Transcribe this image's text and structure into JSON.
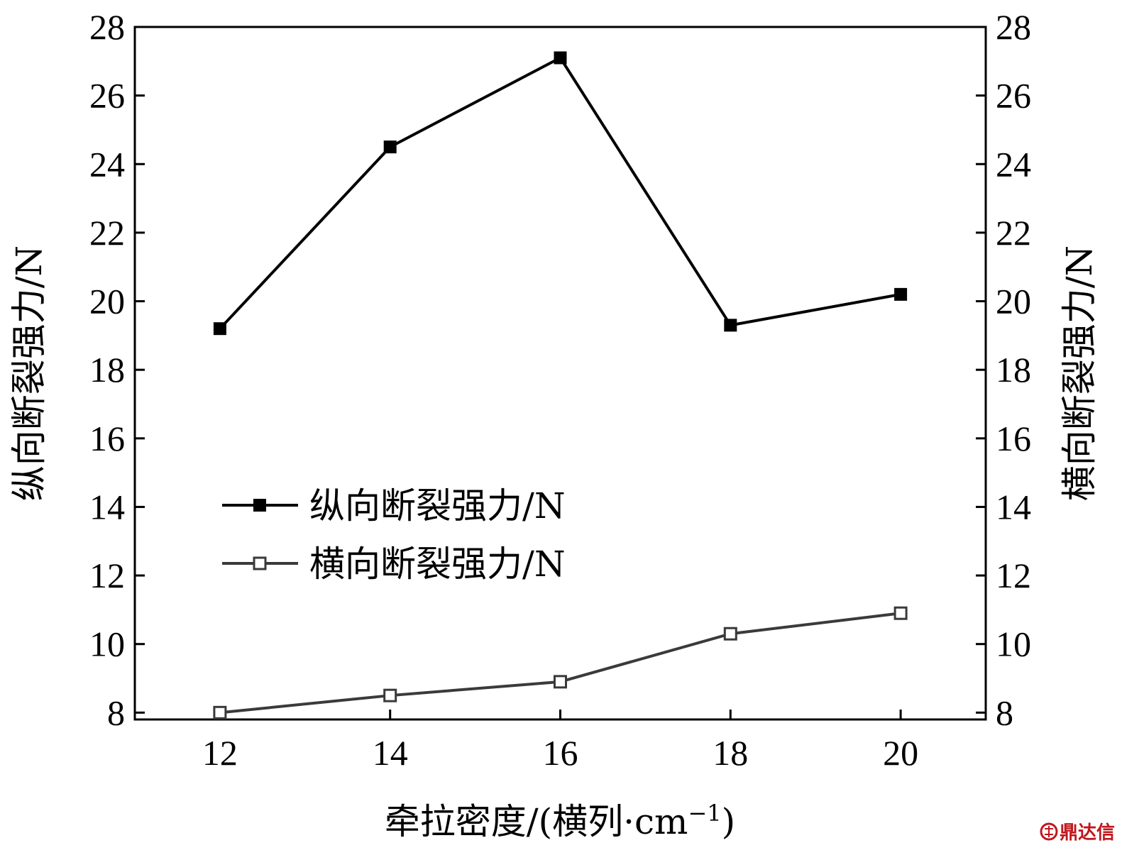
{
  "chart_data": {
    "type": "line",
    "x": [
      12,
      14,
      16,
      18,
      20
    ],
    "xlim": [
      11,
      21
    ],
    "ylim_left": [
      7.8,
      28
    ],
    "ylim_right": [
      7.8,
      28
    ],
    "xticks": [
      12,
      14,
      16,
      18,
      20
    ],
    "yticks": [
      8,
      10,
      12,
      14,
      16,
      18,
      20,
      22,
      24,
      26,
      28
    ],
    "xlabel": "牵拉密度/(横列·cm",
    "xlabel_sup": "−1",
    "xlabel_close": ")",
    "ylabel_left": "纵向断裂强力/N",
    "ylabel_right": "横向断裂强力/N",
    "grid": false,
    "legend_position": "center-left",
    "series": [
      {
        "name": "纵向断裂强力/N",
        "axis": "left",
        "values": [
          19.2,
          24.5,
          27.1,
          19.3,
          20.2
        ],
        "color": "#000000",
        "marker": "filled-square"
      },
      {
        "name": "横向断裂强力/N",
        "axis": "right",
        "values": [
          8.0,
          8.5,
          8.9,
          10.3,
          10.9
        ],
        "color": "#3a3a3a",
        "marker": "open-square"
      }
    ]
  },
  "watermark": {
    "text": "鼎达信",
    "color": "#c0171d"
  }
}
